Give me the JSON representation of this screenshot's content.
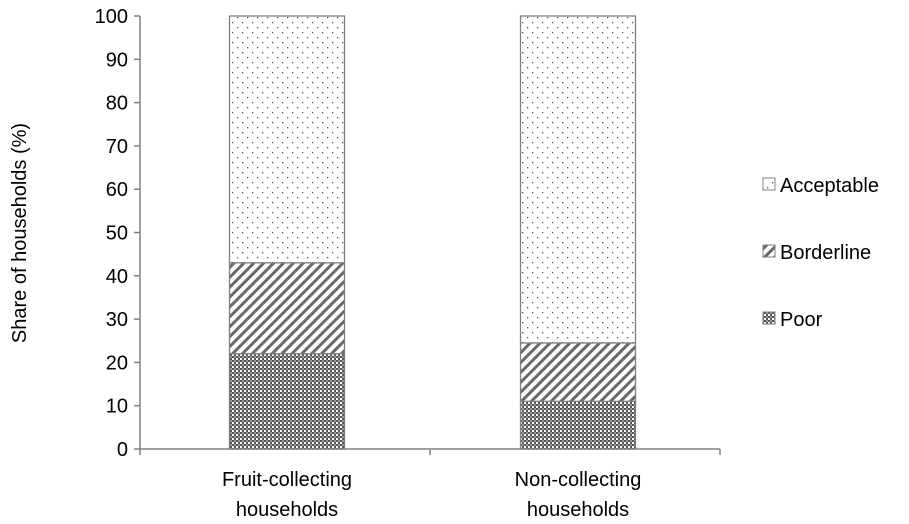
{
  "chart_data": {
    "type": "bar",
    "stacked": true,
    "ylabel": "Share of households (%)",
    "ylim": [
      0,
      100
    ],
    "yticks": [
      0,
      10,
      20,
      30,
      40,
      50,
      60,
      70,
      80,
      90,
      100
    ],
    "categories": [
      [
        "Fruit-collecting",
        "households"
      ],
      [
        "Non-collecting",
        "households"
      ]
    ],
    "series": [
      {
        "name": "Poor",
        "values": [
          22,
          11
        ],
        "pattern": "dense-grid"
      },
      {
        "name": "Borderline",
        "values": [
          21,
          13.5
        ],
        "pattern": "diagonal-hatch"
      },
      {
        "name": "Acceptable",
        "values": [
          57,
          75.5
        ],
        "pattern": "sparse-dots"
      }
    ],
    "legend_order": [
      "Acceptable",
      "Borderline",
      "Poor"
    ],
    "legend_position": "right",
    "grid": false,
    "colors": {
      "axis": "#808080",
      "bar_stroke": "#808080",
      "pattern_ink": "#404040"
    }
  }
}
